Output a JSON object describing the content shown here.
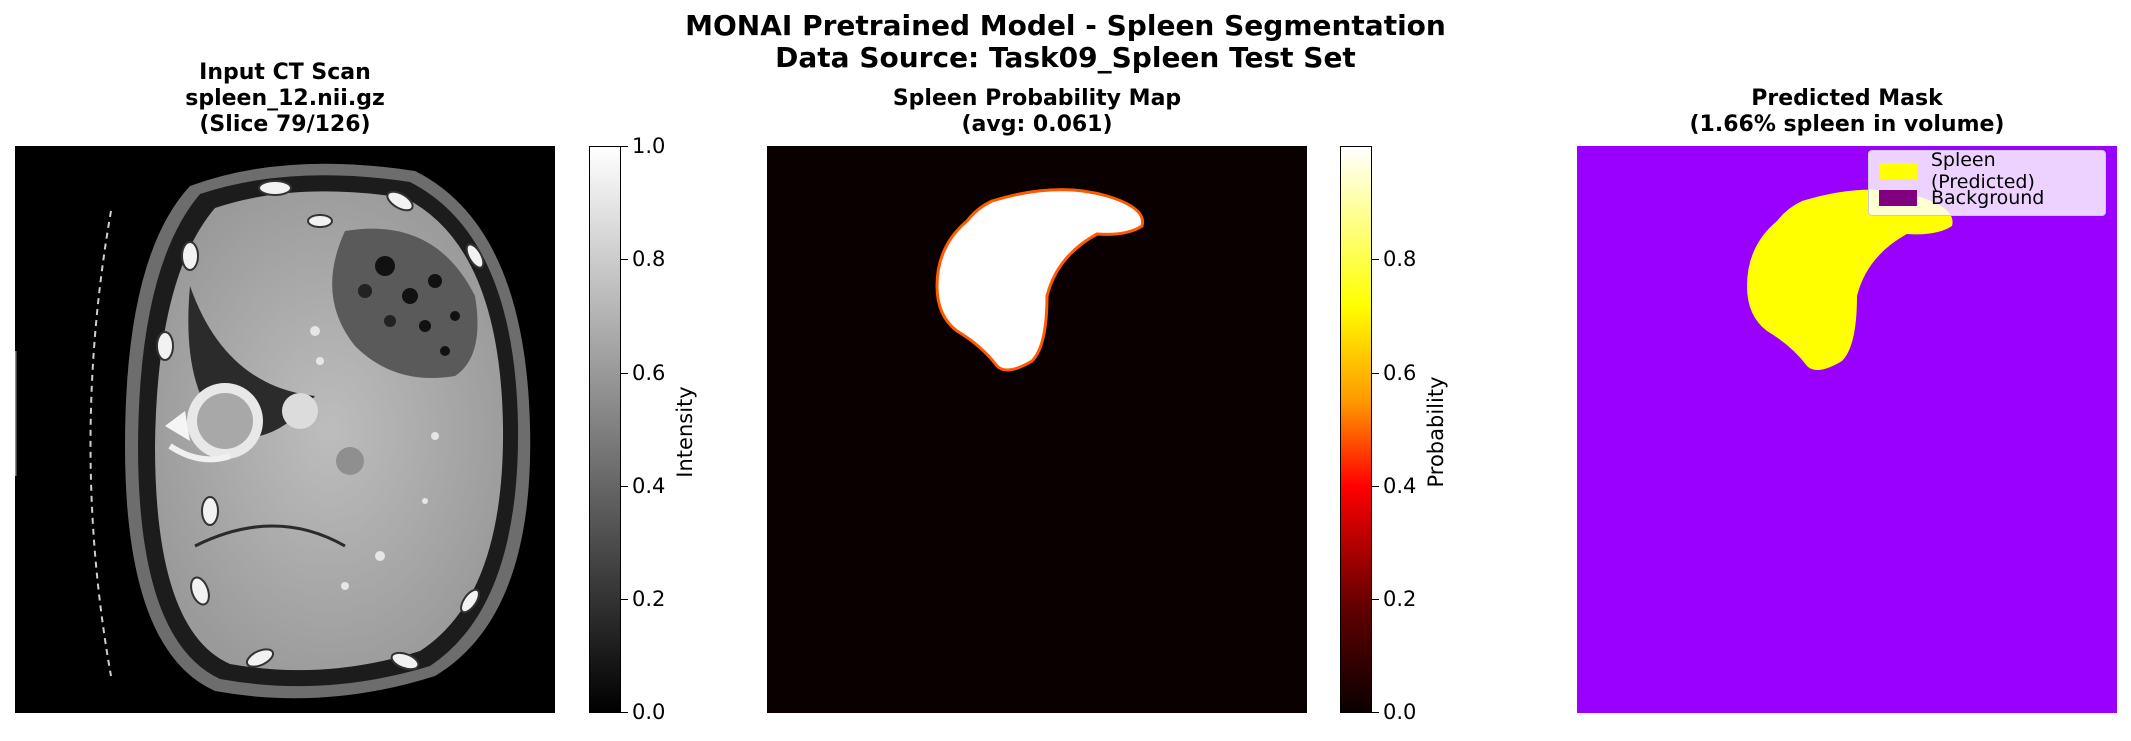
{
  "figure": {
    "title_line1": "MONAI Pretrained Model - Spleen Segmentation",
    "title_line2": "Data Source: Task09_Spleen Test Set"
  },
  "panels": {
    "ct": {
      "title_line1": "Input CT Scan",
      "title_line2": "spleen_12.nii.gz",
      "title_line3": "(Slice 79/126)",
      "colormap": "gray",
      "colorbar": {
        "label": "Intensity",
        "ticks": [
          "1.0",
          "0.8",
          "0.6",
          "0.4",
          "0.2",
          "0.0"
        ]
      }
    },
    "prob": {
      "title_line1": "Spleen Probability Map",
      "title_line2": "(avg: 0.061)",
      "colormap": "hot",
      "colorbar": {
        "label": "Probability",
        "ticks": [
          "0.8",
          "0.6",
          "0.4",
          "0.2",
          "0.0"
        ]
      }
    },
    "mask": {
      "title_line1": "Predicted Mask",
      "title_line2": "(1.66% spleen in volume)",
      "legend": [
        {
          "label": "Spleen (Predicted)",
          "color": "#ffff00"
        },
        {
          "label": "Background",
          "color": "#800080"
        }
      ],
      "background_color": "#9900ff"
    }
  }
}
